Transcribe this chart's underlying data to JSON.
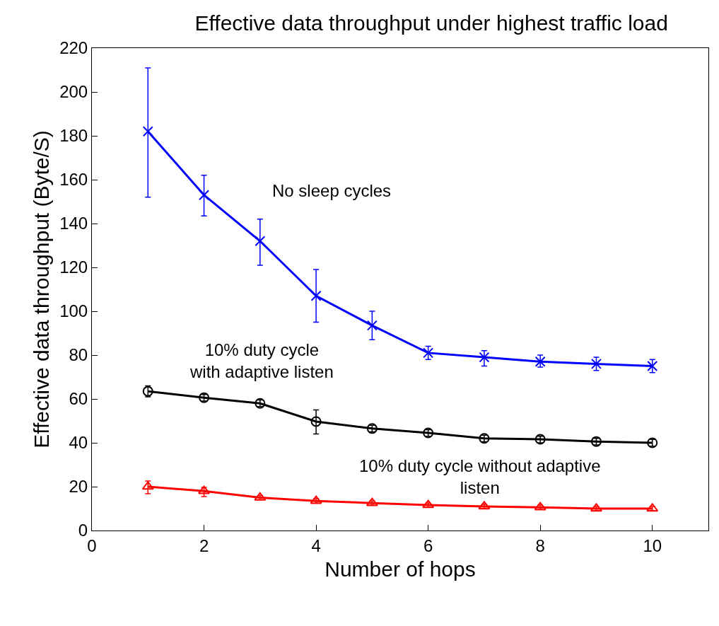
{
  "chart_data": {
    "type": "line",
    "title": "Effective data throughput under highest traffic load",
    "xlabel": "Number of hops",
    "ylabel": "Effective data throughput (Byte/S)",
    "x": [
      1,
      2,
      3,
      4,
      5,
      6,
      7,
      8,
      9,
      10
    ],
    "xlim": [
      0,
      11
    ],
    "xticks": [
      0,
      2,
      4,
      6,
      8,
      10
    ],
    "ylim": [
      0,
      220
    ],
    "yticks": [
      0,
      20,
      40,
      60,
      80,
      100,
      120,
      140,
      160,
      180,
      200,
      220
    ],
    "line_style": "solid",
    "series": [
      {
        "color": "#0000ff",
        "marker": "cross",
        "values": [
          182,
          153,
          132,
          107,
          93.5,
          81,
          79,
          77,
          76,
          75
        ],
        "errors": [
          [
            152,
            211
          ],
          [
            143.5,
            162
          ],
          [
            121,
            142
          ],
          [
            95,
            119
          ],
          [
            87,
            100
          ],
          [
            78,
            84
          ],
          [
            75,
            82
          ],
          [
            74.5,
            80
          ],
          [
            73,
            79
          ],
          [
            72,
            78
          ]
        ]
      },
      {
        "color": "#000000",
        "marker": "circle",
        "values": [
          63.5,
          60.6,
          58,
          49.7,
          46.5,
          44.5,
          42,
          41.6,
          40.6,
          40
        ],
        "errors": [
          [
            61,
            66
          ],
          [
            59,
            62
          ],
          [
            56.5,
            59.5
          ],
          [
            44,
            55
          ],
          [
            45,
            48
          ],
          [
            43,
            46
          ],
          [
            40.5,
            43.5
          ],
          [
            40,
            43
          ],
          [
            39,
            42
          ],
          [
            38.5,
            41.5
          ]
        ]
      },
      {
        "color": "#ff0000",
        "marker": "triangle",
        "values": [
          20,
          18,
          15,
          13.5,
          12.5,
          11.6,
          11,
          10.6,
          10,
          10
        ],
        "errors": [
          [
            16.8,
            22.6
          ],
          [
            15.5,
            19.7
          ],
          [
            14,
            16
          ],
          [
            12.5,
            14.5
          ],
          [
            11.5,
            13.5
          ],
          [
            10.6,
            12.6
          ],
          [
            10,
            12
          ],
          [
            9.6,
            11.6
          ],
          [
            9,
            11
          ],
          [
            9,
            11
          ]
        ]
      }
    ],
    "annotations": [
      "No sleep cycles",
      "10% duty cycle\nwith adaptive listen",
      "10% duty cycle without adaptive\nlisten"
    ]
  }
}
